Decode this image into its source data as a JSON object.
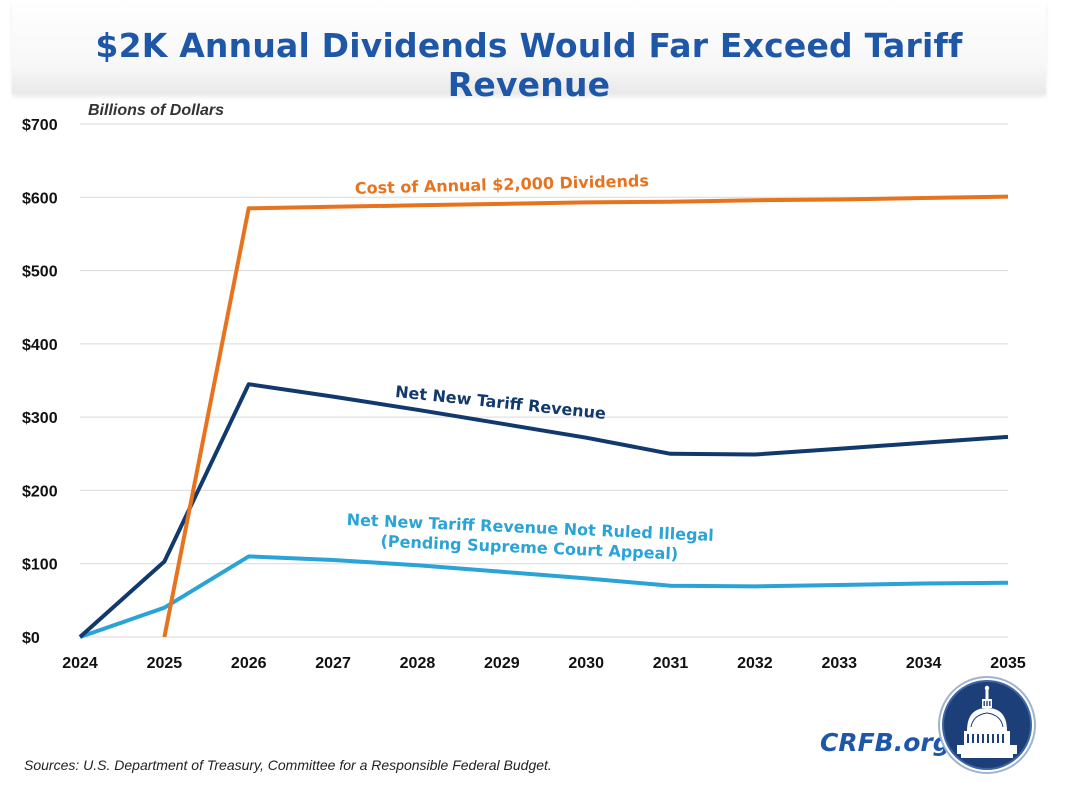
{
  "title": "$2K Annual Dividends Would Far Exceed Tariff Revenue",
  "sources": "Sources: U.S. Department of Treasury, Committee for a Responsible Federal Budget.",
  "brand": "CRFB.org",
  "colors": {
    "title": "#1f57a8",
    "dividends": "#e8731f",
    "net_revenue": "#12396e",
    "not_illegal": "#2aa3d6",
    "grid": "#d9d9d9",
    "logo_navy": "#1c3f7a"
  },
  "icons": {
    "logo": "capitol-dome-seal-icon"
  },
  "chart_data": {
    "type": "line",
    "title": "$2K Annual Dividends Would Far Exceed Tariff Revenue",
    "ylabel": "Billions of Dollars",
    "xlabel": "",
    "grid": true,
    "x": [
      2024,
      2025,
      2026,
      2027,
      2028,
      2029,
      2030,
      2031,
      2032,
      2033,
      2034,
      2035
    ],
    "ylim": [
      0,
      700
    ],
    "yticks": [
      0,
      100,
      200,
      300,
      400,
      500,
      600,
      700
    ],
    "ytick_labels": [
      "$0",
      "$100",
      "$200",
      "$300",
      "$400",
      "$500",
      "$600",
      "$700"
    ],
    "xtick_labels": [
      "2024",
      "2025",
      "2026",
      "2027",
      "2028",
      "2029",
      "2030",
      "2031",
      "2032",
      "2033",
      "2034",
      "2035"
    ],
    "series": [
      {
        "name": "Cost of Annual $2,000 Dividends",
        "label_lines": [
          "Cost of Annual $2,000 Dividends"
        ],
        "color_key": "dividends",
        "values": [
          null,
          0,
          585,
          587,
          589,
          591,
          593,
          594,
          596,
          597,
          599,
          601
        ]
      },
      {
        "name": "Net New Tariff Revenue",
        "label_lines": [
          "Net New Tariff Revenue"
        ],
        "color_key": "net_revenue",
        "values": [
          0,
          103,
          345,
          328,
          310,
          291,
          272,
          250,
          249,
          257,
          265,
          273
        ]
      },
      {
        "name": "Net New Tariff Revenue Not Ruled Illegal (Pending Supreme Court Appeal)",
        "label_lines": [
          "Net New Tariff Revenue Not Ruled Illegal",
          "(Pending Supreme Court Appeal)"
        ],
        "color_key": "not_illegal",
        "values": [
          0,
          40,
          110,
          105,
          98,
          89,
          80,
          70,
          69,
          71,
          73,
          74
        ]
      }
    ]
  }
}
